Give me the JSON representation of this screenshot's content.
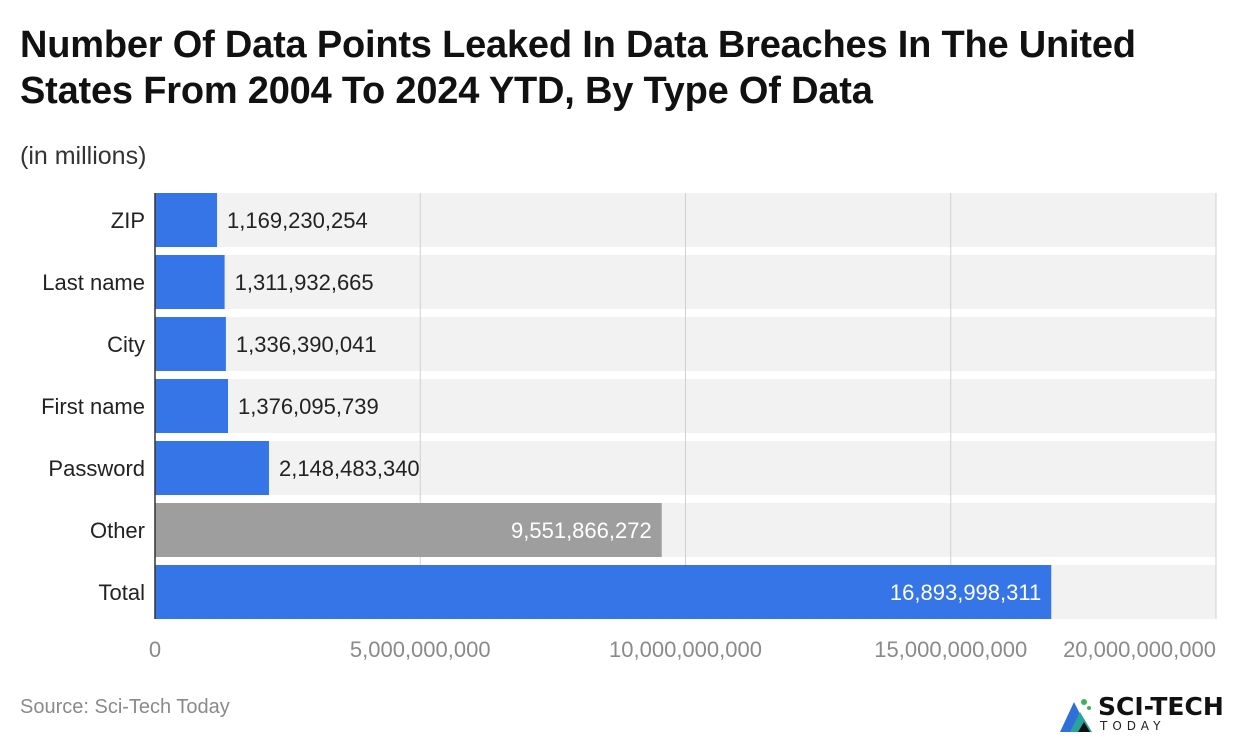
{
  "title": "Number Of Data Points Leaked In Data Breaches In The United States From 2004 To 2024 YTD, By Type Of Data",
  "subtitle": "(in millions)",
  "source": "Source: Sci-Tech Today",
  "logo": {
    "line1": "SCI-TECH",
    "line2": "TODAY"
  },
  "colors": {
    "primary_bar": "#3575e8",
    "other_bar": "#9e9e9e",
    "track": "#f2f2f2",
    "grid": "#d0d0d0",
    "axis_label": "#8a8a8a"
  },
  "chart_data": {
    "type": "bar",
    "orientation": "horizontal",
    "categories": [
      "ZIP",
      "Last name",
      "City",
      "First name",
      "Password",
      "Other",
      "Total"
    ],
    "values": [
      1169230254,
      1311932665,
      1336390041,
      1376095739,
      2148483340,
      9551866272,
      16893998311
    ],
    "value_labels": [
      "1,169,230,254",
      "1,311,932,665",
      "1,336,390,041",
      "1,376,095,739",
      "2,148,483,340",
      "9,551,866,272",
      "16,893,998,311"
    ],
    "bar_colors": [
      "#3575e8",
      "#3575e8",
      "#3575e8",
      "#3575e8",
      "#3575e8",
      "#9e9e9e",
      "#3575e8"
    ],
    "xlim": [
      0,
      20000000000
    ],
    "xticks": [
      0,
      5000000000,
      10000000000,
      15000000000,
      20000000000
    ],
    "xtick_labels": [
      "0",
      "5,000,000,000",
      "10,000,000,000",
      "15,000,000,000",
      "20,000,000,000"
    ],
    "grid": true,
    "legend": "none"
  }
}
